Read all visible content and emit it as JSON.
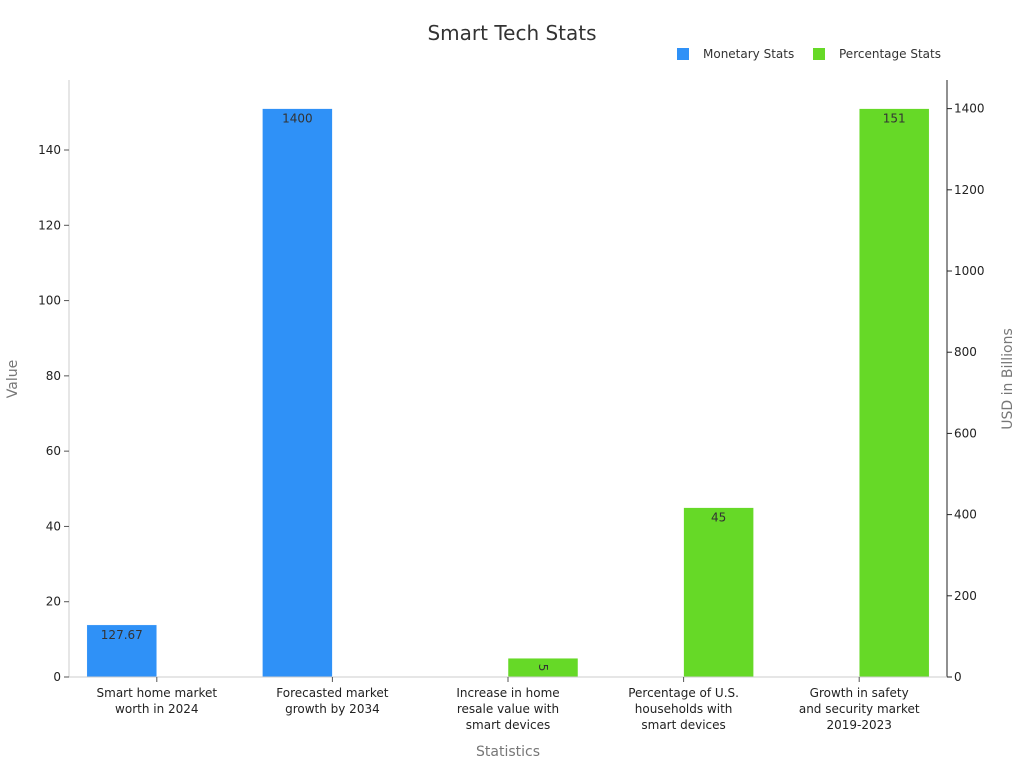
{
  "chart_data": {
    "type": "bar",
    "title": "Smart Tech Stats",
    "xlabel": "Statistics",
    "ylabel": "Value",
    "y2label": "USD in Billions",
    "ylim": [
      0,
      158.6
    ],
    "y2lim": [
      0,
      1470.5
    ],
    "yticks": [
      0,
      20,
      40,
      60,
      80,
      100,
      120,
      140
    ],
    "y2ticks": [
      0,
      200,
      400,
      600,
      800,
      1000,
      1200,
      1400
    ],
    "categories": [
      [
        "Smart home market",
        "worth in 2024"
      ],
      [
        "Forecasted market",
        "growth by 2034"
      ],
      [
        "Increase in home",
        "resale value with",
        "smart devices"
      ],
      [
        "Percentage of U.S.",
        "households with",
        "smart devices"
      ],
      [
        "Growth in safety",
        "and security market",
        "2019-2023"
      ]
    ],
    "series": [
      {
        "name": "Monetary Stats",
        "color": "#2f91f7",
        "axis": "left",
        "values": [
          13.86,
          151,
          null,
          null,
          null
        ],
        "labels": [
          "127.67",
          "1400",
          "",
          "",
          ""
        ]
      },
      {
        "name": "Percentage Stats",
        "color": "#66d927",
        "axis": "left",
        "values": [
          null,
          null,
          5,
          45,
          151
        ],
        "labels": [
          "",
          "",
          "5",
          "45",
          "151"
        ]
      }
    ],
    "legend_position": "top-right"
  }
}
